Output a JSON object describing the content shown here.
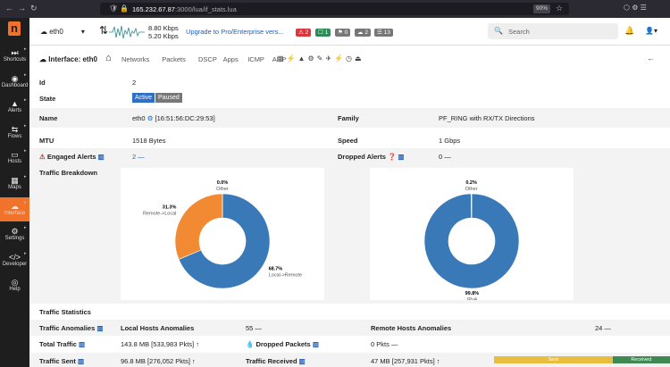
{
  "browser": {
    "url_host": "165.232.67.87",
    "url_path": ":3000/lua/if_stats.lua",
    "zoom": "90%"
  },
  "sidebar": {
    "items": [
      "Shortcuts",
      "Dashboard",
      "Alerts",
      "Flows",
      "Hosts",
      "Maps",
      "Interface",
      "Settings",
      "Developer",
      "Help"
    ]
  },
  "topbar": {
    "interface": "eth0",
    "upload": "8.80 Kbps",
    "download": "5.20 Kbps",
    "upgrade": "Upgrade to Pro/Enterprise vers...",
    "badges": [
      "2",
      "1",
      "0",
      "2",
      "13"
    ],
    "search_placeholder": "Search"
  },
  "subnav": {
    "title": "Interface: eth0",
    "tabs": [
      "Networks",
      "Packets",
      "DSCP",
      "Apps",
      "ICMP",
      "ARP"
    ]
  },
  "details": {
    "id": {
      "label": "Id",
      "value": "2"
    },
    "state": {
      "label": "State",
      "active": "Active",
      "paused": "Paused"
    },
    "name": {
      "label": "Name",
      "value": "eth0",
      "mac": "[16:51:56:DC:29:53]"
    },
    "family": {
      "label": "Family",
      "value": "PF_RING with RX/TX Directions"
    },
    "mtu": {
      "label": "MTU",
      "value": "1518 Bytes"
    },
    "speed": {
      "label": "Speed",
      "value": "1 Gbps"
    },
    "engaged_alerts": {
      "label": "Engaged Alerts",
      "value": "2 —"
    },
    "dropped_alerts": {
      "label": "Dropped Alerts",
      "value": "0 —"
    },
    "breakdown_label": "Traffic Breakdown"
  },
  "breakdown_charts": [
    {
      "type": "pie",
      "names": [
        "Local->Remote",
        "Remote->Local",
        "Other"
      ],
      "values": [
        68.7,
        31.3,
        0.0
      ],
      "value_labels": [
        "68.7%",
        "31.3%",
        "0.0%"
      ],
      "colors": [
        "#3a79b8",
        "#f28a34",
        "#c8c8c8"
      ]
    },
    {
      "type": "pie",
      "names": [
        "IPv4",
        "Other"
      ],
      "values": [
        99.8,
        0.2
      ],
      "value_labels": [
        "99.8%",
        "0.2%"
      ],
      "colors": [
        "#3a79b8",
        "#c8c8c8"
      ]
    }
  ],
  "stats": {
    "title": "Traffic Statistics",
    "anomalies": {
      "label": "Traffic Anomalies",
      "local_label": "Local Hosts Anomalies",
      "local_value": "55 —",
      "remote_label": "Remote Hosts Anomalies",
      "remote_value": "24 —"
    },
    "total": {
      "label": "Total Traffic",
      "value": "143.8 MB [533,983 Pkts] ↑",
      "dropped_label": "Dropped Packets",
      "dropped_value": "0 Pkts —"
    },
    "sent": {
      "label": "Traffic Sent",
      "value": "96.8 MB [276,052 Pkts] ↑",
      "received_label": "Traffic Received",
      "received_value": "47 MB [257,931 Pkts] ↑"
    },
    "ratio_bar": {
      "names": [
        "Sent",
        "Received"
      ],
      "values": [
        96.8,
        47
      ],
      "colors": [
        "#e9bd3d",
        "#3e8a52"
      ]
    }
  }
}
